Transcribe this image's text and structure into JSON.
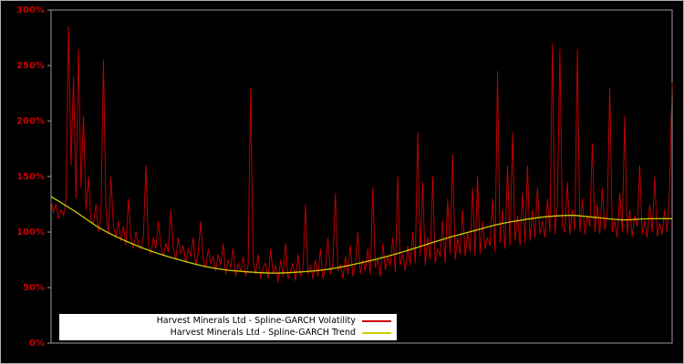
{
  "app": {
    "background_color": "#000000",
    "frame_color": "#9a9a9a",
    "axis_label_color": "#cc0000"
  },
  "legend": {
    "items": [
      {
        "label": "Harvest Minerals Ltd - Spline-GARCH Volatility",
        "color": "#cc0000"
      },
      {
        "label": "Harvest Minerals Ltd - Spline-GARCH Trend",
        "color": "#cccc00"
      }
    ]
  },
  "chart_data": {
    "type": "line",
    "title": "",
    "xlabel": "",
    "ylabel": "",
    "ylim": [
      0,
      300
    ],
    "yticks": [
      0,
      50,
      100,
      150,
      200,
      250,
      300
    ],
    "ytick_labels": [
      "0%",
      "50%",
      "100%",
      "150%",
      "200%",
      "250%",
      "300%"
    ],
    "grid": false,
    "legend_position": "bottom-left",
    "series": [
      {
        "name": "Harvest Minerals Ltd - Spline-GARCH Volatility",
        "color": "#cc0000",
        "values": [
          128,
          118,
          125,
          112,
          120,
          115,
          130,
          285,
          160,
          240,
          130,
          265,
          140,
          205,
          120,
          150,
          110,
          108,
          125,
          100,
          115,
          255,
          120,
          98,
          150,
          105,
          95,
          110,
          92,
          105,
          88,
          130,
          95,
          85,
          100,
          90,
          85,
          95,
          160,
          90,
          80,
          95,
          85,
          110,
          88,
          78,
          90,
          82,
          120,
          85,
          75,
          95,
          80,
          88,
          72,
          85,
          78,
          95,
          70,
          82,
          110,
          75,
          68,
          85,
          72,
          78,
          65,
          80,
          70,
          90,
          62,
          75,
          68,
          85,
          60,
          72,
          65,
          78,
          60,
          70,
          230,
          75,
          62,
          80,
          58,
          68,
          72,
          58,
          85,
          62,
          70,
          55,
          75,
          60,
          90,
          58,
          65,
          72,
          56,
          80,
          60,
          68,
          125,
          62,
          70,
          58,
          75,
          60,
          85,
          58,
          68,
          95,
          62,
          72,
          135,
          65,
          70,
          58,
          78,
          62,
          88,
          60,
          72,
          100,
          62,
          75,
          65,
          85,
          62,
          140,
          68,
          75,
          60,
          90,
          66,
          78,
          70,
          95,
          64,
          150,
          70,
          80,
          65,
          88,
          70,
          100,
          72,
          190,
          78,
          145,
          70,
          95,
          75,
          150,
          72,
          85,
          78,
          110,
          72,
          130,
          80,
          170,
          75,
          95,
          80,
          120,
          78,
          100,
          82,
          140,
          78,
          150,
          80,
          110,
          85,
          95,
          88,
          130,
          82,
          245,
          90,
          120,
          85,
          160,
          88,
          190,
          92,
          115,
          88,
          135,
          90,
          160,
          92,
          120,
          95,
          140,
          98,
          110,
          95,
          130,
          100,
          270,
          98,
          125,
          265,
          105,
          100,
          145,
          98,
          120,
          102,
          265,
          100,
          130,
          98,
          115,
          105,
          180,
          100,
          125,
          98,
          140,
          102,
          118,
          230,
          100,
          110,
          95,
          135,
          100,
          205,
          98,
          120,
          96,
          115,
          105,
          160,
          98,
          110,
          95,
          125,
          100,
          150,
          96,
          108,
          98,
          120,
          100,
          140,
          235
        ]
      },
      {
        "name": "Harvest Minerals Ltd - Spline-GARCH Trend",
        "color": "#cccc00",
        "points": [
          [
            0,
            132
          ],
          [
            4,
            118
          ],
          [
            8,
            103
          ],
          [
            12,
            92
          ],
          [
            16,
            83
          ],
          [
            20,
            76
          ],
          [
            24,
            70
          ],
          [
            28,
            66
          ],
          [
            32,
            64
          ],
          [
            36,
            63
          ],
          [
            40,
            64
          ],
          [
            44,
            66
          ],
          [
            48,
            70
          ],
          [
            52,
            75
          ],
          [
            56,
            81
          ],
          [
            60,
            88
          ],
          [
            64,
            95
          ],
          [
            68,
            101
          ],
          [
            72,
            107
          ],
          [
            76,
            111
          ],
          [
            80,
            114
          ],
          [
            84,
            115
          ],
          [
            88,
            113
          ],
          [
            92,
            111
          ],
          [
            96,
            112
          ],
          [
            100,
            112
          ]
        ]
      }
    ]
  }
}
